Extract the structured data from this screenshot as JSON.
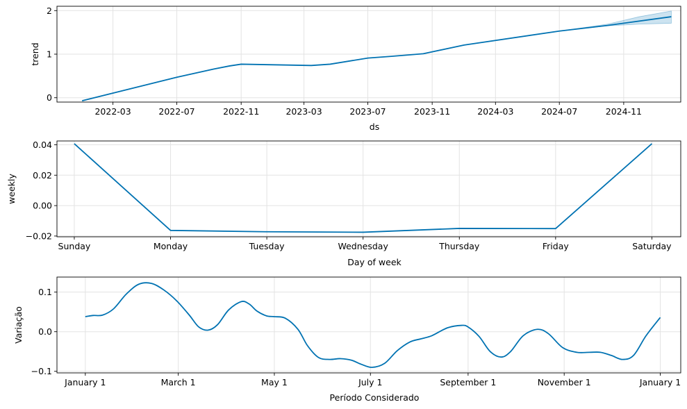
{
  "colors": {
    "line": "#0072B2",
    "band": "#0072B2"
  },
  "chart_data": [
    {
      "type": "line",
      "title": "",
      "xlabel": "ds",
      "ylabel": "trend",
      "grid": true,
      "x_type": "date",
      "xlim": [
        "2021-11-14",
        "2025-02-18"
      ],
      "ylim": [
        -0.1,
        2.1
      ],
      "x_ticks": [
        "2022-03-01",
        "2022-07-01",
        "2022-11-01",
        "2023-03-01",
        "2023-07-01",
        "2023-11-01",
        "2024-03-01",
        "2024-07-01",
        "2024-11-01"
      ],
      "x_tick_labels": [
        "2022-03",
        "2022-07",
        "2022-11",
        "2023-03",
        "2023-07",
        "2023-11",
        "2024-03",
        "2024-07",
        "2024-11"
      ],
      "y_ticks": [
        0,
        1,
        2
      ],
      "y_tick_labels": [
        "0",
        "1",
        "2"
      ],
      "series": [
        {
          "x": [
            "2022-01-01",
            "2022-07-01",
            "2022-09-10",
            "2022-10-10",
            "2022-11-01",
            "2023-03-15",
            "2023-04-20",
            "2023-07-01",
            "2023-08-15",
            "2023-10-15",
            "2024-01-01",
            "2024-07-01",
            "2024-10-01",
            "2025-01-31"
          ],
          "y": [
            -0.07,
            0.47,
            0.66,
            0.73,
            0.77,
            0.74,
            0.77,
            0.91,
            0.95,
            1.01,
            1.21,
            1.53,
            1.66,
            1.86
          ]
        }
      ],
      "uncertainty_band": {
        "x": [
          "2024-07-01",
          "2024-10-01",
          "2024-12-01",
          "2025-01-31"
        ],
        "lower": [
          1.53,
          1.65,
          1.69,
          1.71
        ],
        "upper": [
          1.53,
          1.69,
          1.86,
          1.99
        ]
      }
    },
    {
      "type": "line",
      "title": "",
      "xlabel": "Day of week",
      "ylabel": "weekly",
      "grid": true,
      "categories": [
        "Sunday",
        "Monday",
        "Tuesday",
        "Wednesday",
        "Thursday",
        "Friday",
        "Saturday"
      ],
      "xlim": [
        -0.18,
        6.3
      ],
      "ylim": [
        -0.0205,
        0.0425
      ],
      "y_ticks": [
        -0.02,
        0,
        0.02,
        0.04
      ],
      "y_tick_labels": [
        "−0.02",
        "0.00",
        "0.02",
        "0.04"
      ],
      "series": [
        {
          "values": [
            0.0407,
            -0.0163,
            -0.0172,
            -0.0175,
            -0.015,
            -0.0151,
            0.0407
          ]
        }
      ]
    },
    {
      "type": "line",
      "title": "",
      "xlabel": "Período Considerado",
      "ylabel": "Variação",
      "grid": true,
      "x_type": "day_of_year",
      "xlim": [
        -18,
        378
      ],
      "ylim": [
        -0.104,
        0.138
      ],
      "x_ticks": [
        0,
        59,
        120,
        181,
        243,
        304,
        365
      ],
      "x_tick_labels": [
        "January 1",
        "March 1",
        "May 1",
        "July 1",
        "September 1",
        "November 1",
        "January 1"
      ],
      "y_ticks": [
        -0.1,
        0,
        0.1
      ],
      "y_tick_labels": [
        "−0.1",
        "0.0",
        "0.1"
      ],
      "series": [
        {
          "x": [
            0,
            5,
            11,
            18,
            26,
            34,
            42,
            50,
            58,
            66,
            72,
            78,
            84,
            91,
            99,
            104,
            109,
            115,
            120,
            127,
            135,
            141,
            148,
            155,
            162,
            169,
            175,
            182,
            190,
            198,
            206,
            213,
            220,
            230,
            239,
            243,
            250,
            257,
            264,
            270,
            278,
            287,
            294,
            303,
            312,
            320,
            327,
            334,
            341,
            348,
            356,
            365
          ],
          "y": [
            0.038,
            0.041,
            0.042,
            0.058,
            0.095,
            0.12,
            0.122,
            0.105,
            0.078,
            0.042,
            0.012,
            0.004,
            0.018,
            0.055,
            0.076,
            0.07,
            0.052,
            0.04,
            0.038,
            0.034,
            0.006,
            -0.035,
            -0.065,
            -0.07,
            -0.068,
            -0.072,
            -0.082,
            -0.09,
            -0.08,
            -0.048,
            -0.026,
            -0.018,
            -0.01,
            0.01,
            0.016,
            0.012,
            -0.012,
            -0.05,
            -0.064,
            -0.05,
            -0.01,
            0.006,
            -0.005,
            -0.04,
            -0.052,
            -0.052,
            -0.052,
            -0.06,
            -0.07,
            -0.06,
            -0.01,
            0.036
          ]
        }
      ]
    }
  ]
}
